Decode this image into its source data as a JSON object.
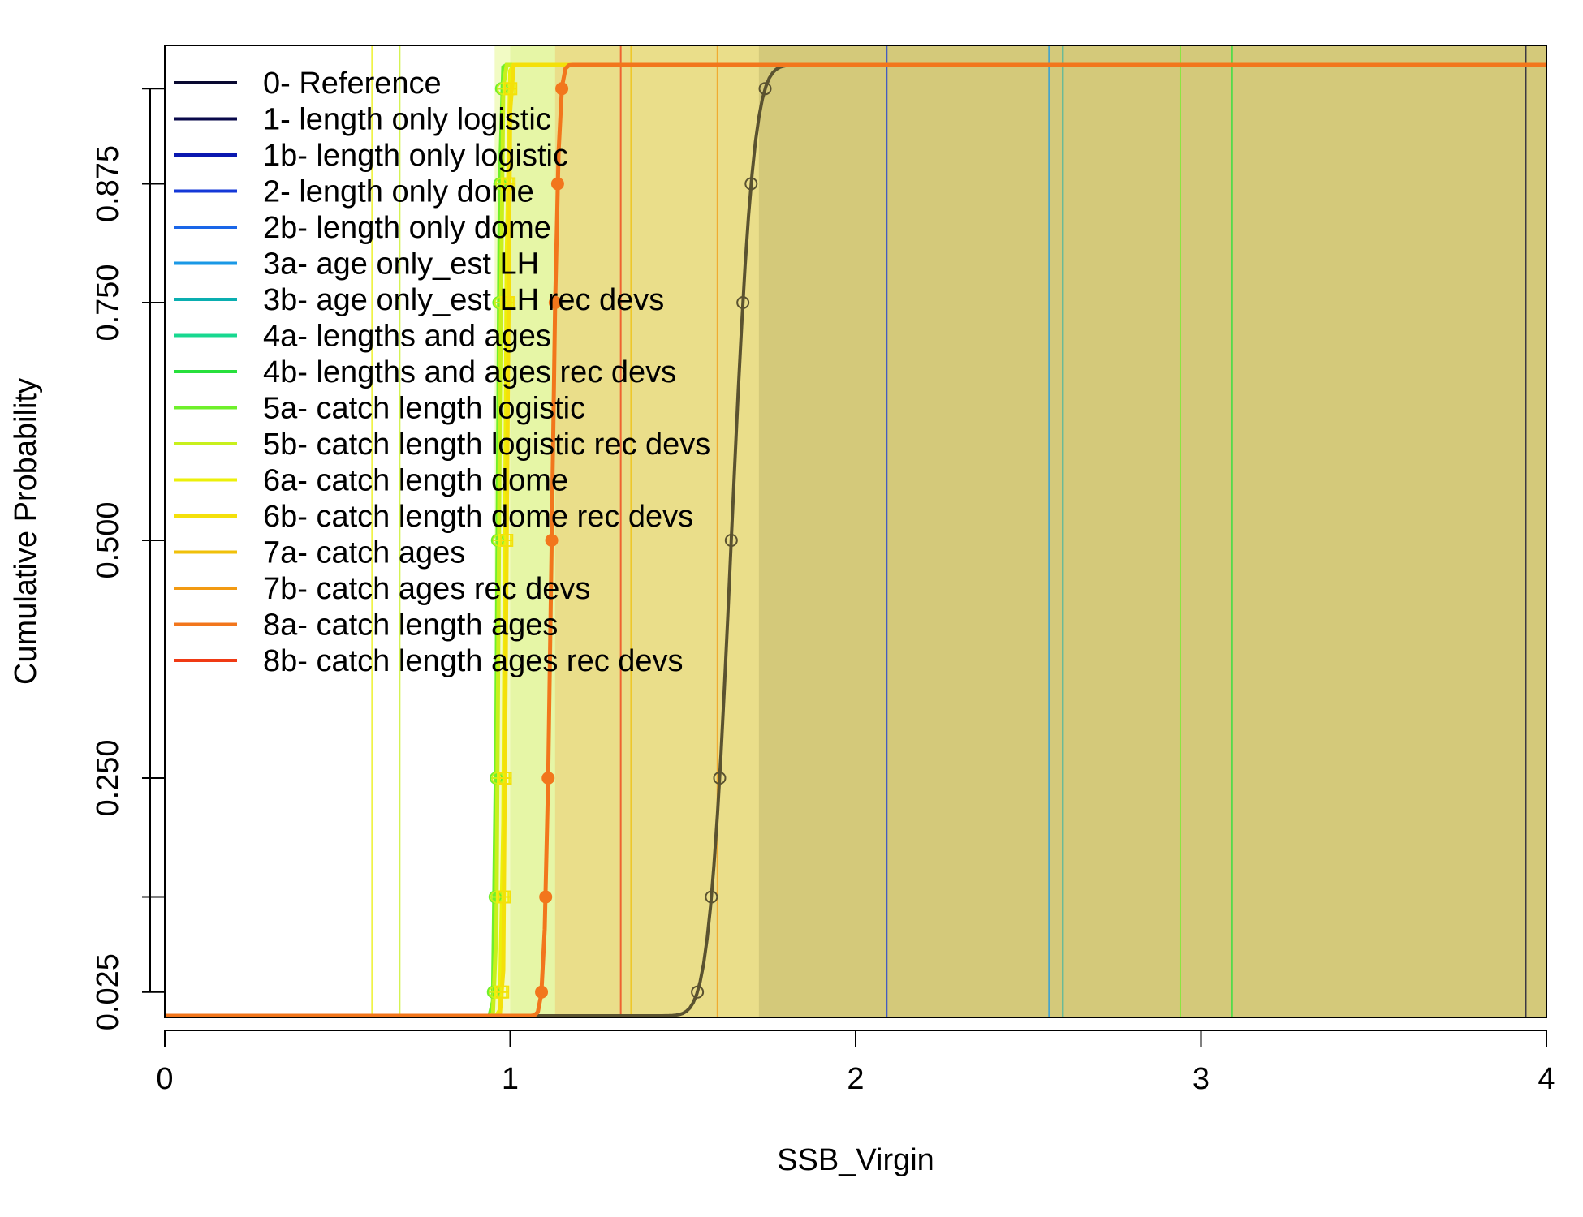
{
  "chart_data": {
    "type": "line",
    "title": "",
    "xlabel": "SSB_Virgin",
    "ylabel": "Cumulative Probability",
    "xlim": [
      0,
      4
    ],
    "ylim": [
      0,
      1
    ],
    "x_ticks": [
      "0",
      "1",
      "2",
      "3",
      "4"
    ],
    "y_ticks": [
      {
        "value": 0.025,
        "label": "0.025"
      },
      {
        "value": 0.125,
        "label": ""
      },
      {
        "value": 0.25,
        "label": "0.250"
      },
      {
        "value": 0.5,
        "label": "0.500"
      },
      {
        "value": 0.75,
        "label": "0.750"
      },
      {
        "value": 0.875,
        "label": "0.875"
      },
      {
        "value": 0.975,
        "label": ""
      }
    ],
    "grid": false,
    "legend_position": "top-left",
    "series": [
      {
        "name": "0- Reference",
        "color": "#080830",
        "mean": 1.64,
        "sd": 0.05,
        "vline": 3.94
      },
      {
        "name": "1- length only logistic",
        "color": "#08084a",
        "mean": null,
        "sd": null,
        "vline": null
      },
      {
        "name": "1b- length only logistic",
        "color": "#0a18b0",
        "mean": null,
        "sd": null,
        "vline": null
      },
      {
        "name": "2- length only dome",
        "color": "#1438d8",
        "mean": null,
        "sd": null,
        "vline": 2.09
      },
      {
        "name": "2b- length only dome",
        "color": "#1a66e8",
        "mean": null,
        "sd": null,
        "vline": null
      },
      {
        "name": "3a- age only_est LH",
        "color": "#1a98e6",
        "mean": null,
        "sd": null,
        "vline": 2.56
      },
      {
        "name": "3b- age only_est LH rec devs",
        "color": "#0aaeb0",
        "mean": null,
        "sd": null,
        "vline": 2.6
      },
      {
        "name": "4a- lengths and ages",
        "color": "#18d890",
        "mean": null,
        "sd": null,
        "vline": null
      },
      {
        "name": "4b- lengths and ages rec devs",
        "color": "#28e03c",
        "mean": null,
        "sd": null,
        "vline": 3.09
      },
      {
        "name": "5a- catch length logistic",
        "color": "#6ef02a",
        "mean": 0.963,
        "sd": 0.006,
        "vline": 2.94
      },
      {
        "name": "5b- catch length logistic rec devs",
        "color": "#c8f01c",
        "mean": 0.968,
        "sd": 0.006,
        "vline": 0.68
      },
      {
        "name": "6a- catch length dome",
        "color": "#ecf00a",
        "mean": 0.985,
        "sd": 0.006,
        "vline": 0.6
      },
      {
        "name": "6b- catch length dome rec devs",
        "color": "#f4e00a",
        "mean": 0.99,
        "sd": 0.006,
        "vline": null
      },
      {
        "name": "7a- catch ages",
        "color": "#f0c00a",
        "mean": null,
        "sd": null,
        "vline": 1.35
      },
      {
        "name": "7b- catch ages rec devs",
        "color": "#f29a12",
        "mean": null,
        "sd": null,
        "vline": 1.6
      },
      {
        "name": "8a- catch length ages",
        "color": "#f2761c",
        "mean": 1.12,
        "sd": 0.015,
        "vline": null
      },
      {
        "name": "8b- catch length ages rec devs",
        "color": "#f03a14",
        "mean": null,
        "sd": null,
        "vline": 1.32
      }
    ]
  }
}
